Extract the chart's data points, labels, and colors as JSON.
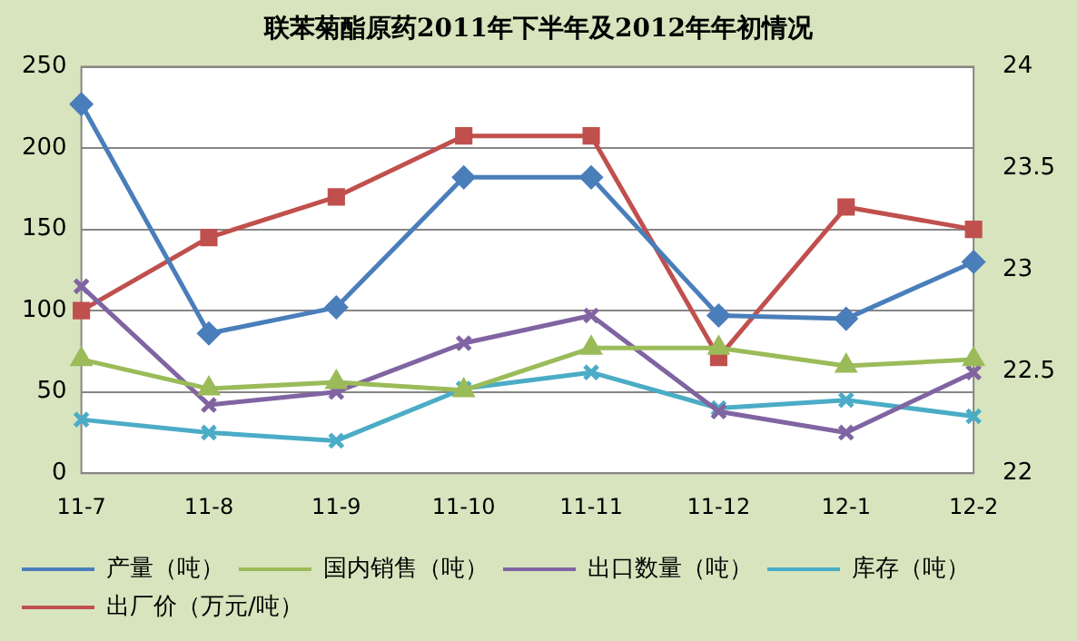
{
  "chart_data": {
    "type": "line",
    "title": "联苯菊酯原药2011年下半年及2012年年初情况",
    "categories": [
      "11-7",
      "11-8",
      "11-9",
      "11-10",
      "11-11",
      "11-12",
      "12-1",
      "12-2"
    ],
    "series": [
      {
        "name": "产量（吨）",
        "color": "#4a7ebb",
        "marker": "diamond",
        "values": [
          227,
          86,
          102,
          182,
          182,
          97,
          95,
          130
        ]
      },
      {
        "name": "国内销售（吨）",
        "color": "#9bbb59",
        "marker": "triangle",
        "values": [
          70,
          52,
          56,
          51,
          77,
          77,
          66,
          70
        ]
      },
      {
        "name": "出口数量（吨）",
        "color": "#8064a2",
        "marker": "cross",
        "values": [
          115,
          42,
          50,
          80,
          97,
          38,
          25,
          62
        ]
      },
      {
        "name": "库存（吨）",
        "color": "#4bacc6",
        "marker": "cross",
        "values": [
          33,
          25,
          20,
          52,
          62,
          40,
          45,
          35
        ]
      },
      {
        "name": "出厂价（万元/吨）",
        "color": "#c0504d",
        "marker": "square",
        "axis": "y2",
        "values": [
          22.8,
          23.16,
          23.36,
          23.66,
          23.66,
          22.57,
          23.31,
          23.2
        ]
      }
    ],
    "ylim": [
      0,
      250
    ],
    "yticks": [
      0,
      50,
      100,
      150,
      200,
      250
    ],
    "y2lim": [
      22,
      24
    ],
    "y2ticks": [
      22,
      22.5,
      23,
      23.5,
      24
    ],
    "grid": "y",
    "legend": "bottom"
  }
}
